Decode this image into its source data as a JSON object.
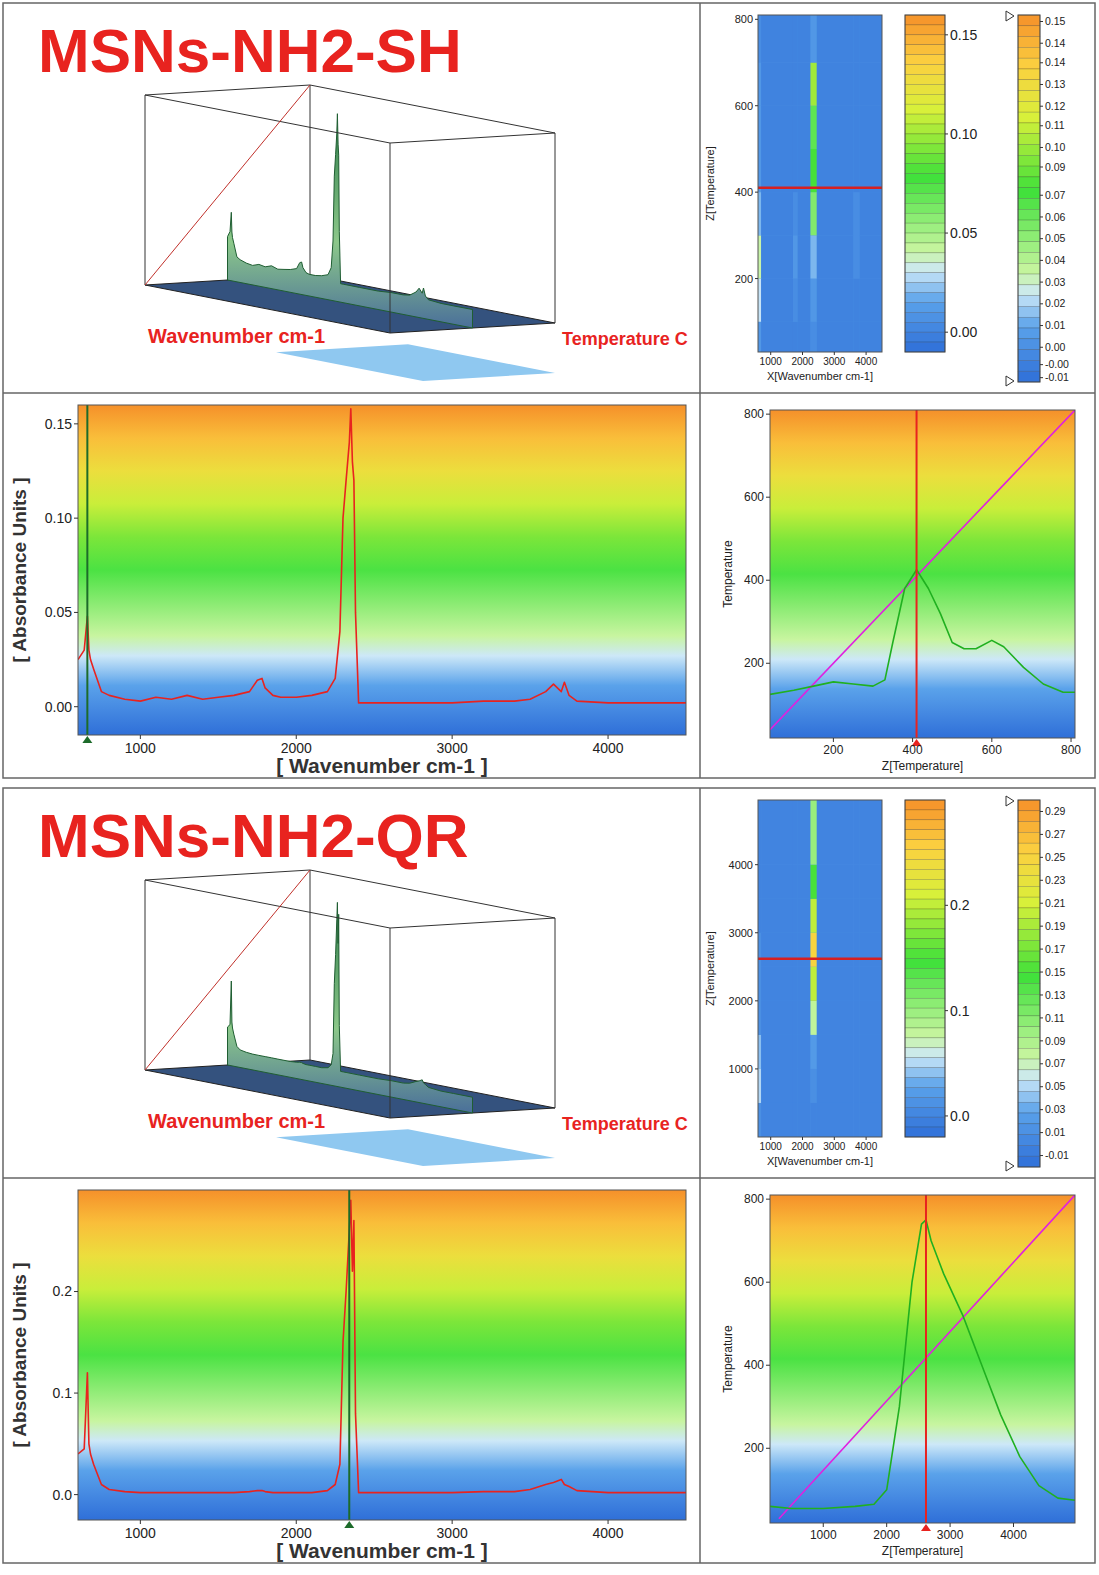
{
  "chart_data": [
    {
      "type": "surface3d",
      "title": "MSNs-NH2-SH",
      "x_label": "Wavenumber cm-1",
      "z_label": "Temperature C"
    },
    {
      "type": "heatmap",
      "x_label": "X[Wavenumber cm-1]",
      "y_label": "Z[Temperature]",
      "x_edges": [
        600,
        700,
        1700,
        1850,
        2250,
        2450,
        3600,
        3800,
        4500
      ],
      "y_edges": [
        30,
        100,
        200,
        300,
        400,
        500,
        600,
        700,
        810
      ],
      "cells": [
        [
          0.01,
          0,
          0,
          0,
          0.005,
          0,
          0,
          0
        ],
        [
          0.03,
          0,
          0.005,
          0,
          0.01,
          0,
          0,
          0
        ],
        [
          0.04,
          0,
          0.01,
          0,
          0.02,
          0,
          0.005,
          0
        ],
        [
          0.02,
          0,
          0.005,
          0,
          0.06,
          0,
          0.005,
          0
        ],
        [
          0.01,
          0,
          0,
          0,
          0.08,
          0,
          0,
          0
        ],
        [
          0.01,
          0,
          0,
          0,
          0.07,
          0,
          0,
          0
        ],
        [
          0.01,
          0,
          0,
          0,
          0.1,
          0,
          0,
          0
        ],
        [
          0.005,
          0,
          0,
          0,
          0.01,
          0,
          0,
          0
        ]
      ],
      "xlim": [
        600,
        4500
      ],
      "ylim": [
        30,
        810
      ],
      "xticks": [
        1000,
        2000,
        3000,
        4000
      ],
      "yticks": [
        200,
        400,
        600,
        800
      ],
      "cursor_y": 410,
      "colorbars": [
        {
          "range": [
            -0.01,
            0.16
          ],
          "ticks": [
            {
              "value": 0,
              "label": "0.00"
            },
            0.05,
            {
              "value": 0.1,
              "label": "0.10"
            },
            0.15
          ]
        },
        {
          "range": [
            -0.012,
            0.157
          ],
          "ticks": [
            {
              "value": 0.154,
              "label": "0.15"
            },
            {
              "value": 0.144,
              "label": "0.14"
            },
            {
              "value": 0.135,
              "label": "0.14"
            },
            {
              "value": 0.125,
              "label": "0.13"
            },
            {
              "value": 0.115,
              "label": "0.12"
            },
            {
              "value": 0.106,
              "label": "0.11"
            },
            {
              "value": 0.096,
              "label": "0.10"
            },
            {
              "value": 0.087,
              "label": "0.09"
            },
            {
              "value": 0.074,
              "label": "0.07"
            },
            {
              "value": 0.064,
              "label": "0.06"
            },
            {
              "value": 0.054,
              "label": "0.05"
            },
            {
              "value": 0.044,
              "label": "0.04"
            },
            {
              "value": 0.034,
              "label": "0.03"
            },
            {
              "value": 0.024,
              "label": "0.02"
            },
            {
              "value": 0.014,
              "label": "0.01"
            },
            {
              "value": 0.004,
              "label": "0.00"
            },
            {
              "value": -0.004,
              "label": "-0.00"
            },
            -0.01
          ]
        }
      ]
    },
    {
      "type": "line",
      "x_label": "[ Wavenumber cm-1 ]",
      "y_label": "[ Absorbance Units ]",
      "color": "#e8231f",
      "x": [
        600,
        640,
        660,
        670,
        680,
        700,
        750,
        800,
        900,
        1000,
        1100,
        1200,
        1300,
        1400,
        1500,
        1600,
        1700,
        1750,
        1780,
        1800,
        1850,
        1900,
        2000,
        2100,
        2200,
        2250,
        2280,
        2300,
        2320,
        2340,
        2350,
        2360,
        2370,
        2380,
        2400,
        2450,
        2500,
        2700,
        3000,
        3200,
        3400,
        3500,
        3600,
        3650,
        3700,
        3720,
        3750,
        3800,
        4000,
        4200,
        4500
      ],
      "values": [
        0.025,
        0.03,
        0.048,
        0.03,
        0.025,
        0.02,
        0.008,
        0.006,
        0.004,
        0.003,
        0.005,
        0.004,
        0.006,
        0.004,
        0.005,
        0.006,
        0.008,
        0.014,
        0.015,
        0.01,
        0.006,
        0.005,
        0.005,
        0.006,
        0.008,
        0.015,
        0.04,
        0.1,
        0.12,
        0.14,
        0.158,
        0.13,
        0.12,
        0.05,
        0.002,
        0.002,
        0.002,
        0.002,
        0.002,
        0.003,
        0.003,
        0.004,
        0.008,
        0.012,
        0.008,
        0.013,
        0.006,
        0.003,
        0.002,
        0.002,
        0.002
      ],
      "xlim": [
        600,
        4500
      ],
      "ylim": [
        -0.015,
        0.16
      ],
      "xticks": [
        1000,
        2000,
        3000,
        4000
      ],
      "yticks": [
        {
          "value": 0,
          "label": "0.00"
        },
        0.05,
        {
          "value": 0.1,
          "label": "0.10"
        },
        0.15
      ],
      "cursor_x": 660
    },
    {
      "type": "line",
      "x_label": "Z[Temperature]",
      "y_label": "Temperature",
      "series": [
        {
          "color": "#e020e0",
          "x": [
            40,
            810
          ],
          "values": [
            40,
            810
          ]
        },
        {
          "color": "#20b020",
          "x": [
            40,
            100,
            150,
            200,
            250,
            300,
            330,
            350,
            380,
            410,
            440,
            470,
            500,
            530,
            560,
            600,
            630,
            680,
            730,
            780,
            810
          ],
          "values": [
            125,
            135,
            145,
            155,
            150,
            145,
            160,
            250,
            380,
            425,
            380,
            320,
            250,
            235,
            235,
            255,
            240,
            190,
            150,
            130,
            130
          ]
        }
      ],
      "xlim": [
        40,
        810
      ],
      "ylim": [
        20,
        810
      ],
      "xticks": [
        200,
        400,
        600,
        800
      ],
      "yticks": [
        200,
        400,
        600,
        800
      ],
      "cursor_x": 410
    },
    {
      "type": "surface3d",
      "title": "MSNs-NH2-QR",
      "x_label": "Wavenumber cm-1",
      "z_label": "Temperature C"
    },
    {
      "type": "heatmap",
      "x_label": "X[Wavenumber cm-1]",
      "y_label": "Z[Temperature]",
      "x_edges": [
        600,
        700,
        1700,
        1850,
        2250,
        2450,
        3600,
        3800,
        4500
      ],
      "y_edges": [
        0,
        500,
        1000,
        1500,
        2000,
        2500,
        3000,
        3500,
        4000,
        4950
      ],
      "cells": [
        [
          0.01,
          0,
          0,
          0,
          0,
          0,
          0,
          0
        ],
        [
          0.05,
          0,
          0,
          0,
          0.01,
          0,
          0,
          0
        ],
        [
          0.04,
          0,
          0,
          0,
          0.02,
          0,
          0,
          0
        ],
        [
          0.01,
          0,
          0,
          0,
          0.08,
          0,
          0,
          0
        ],
        [
          0.01,
          0,
          0,
          0,
          0.2,
          0,
          0,
          0
        ],
        [
          0.01,
          0,
          0,
          0,
          0.25,
          0,
          0,
          0
        ],
        [
          0,
          0,
          0,
          0,
          0.2,
          0,
          0,
          0
        ],
        [
          0,
          0,
          0,
          0,
          0.15,
          0,
          0,
          0
        ],
        [
          0,
          0,
          0,
          0,
          0.1,
          0,
          0,
          0
        ]
      ],
      "xlim": [
        600,
        4500
      ],
      "ylim": [
        0,
        4950
      ],
      "xticks": [
        1000,
        2000,
        3000,
        4000
      ],
      "yticks": [
        1000,
        2000,
        3000,
        4000
      ],
      "cursor_y": 2620,
      "colorbars": [
        {
          "range": [
            -0.02,
            0.3
          ],
          "ticks": [
            {
              "value": 0,
              "label": "0.0"
            },
            0.1,
            0.2
          ]
        },
        {
          "range": [
            -0.02,
            0.3
          ],
          "ticks": [
            0.29,
            0.27,
            0.25,
            0.23,
            0.21,
            0.19,
            0.17,
            0.15,
            0.13,
            0.11,
            0.09,
            0.07,
            0.05,
            0.03,
            0.01,
            -0.01
          ]
        }
      ]
    },
    {
      "type": "line",
      "x_label": "[ Wavenumber cm-1 ]",
      "y_label": "[ Absorbance Units ]",
      "color": "#e8231f",
      "x": [
        600,
        640,
        660,
        670,
        680,
        700,
        750,
        800,
        900,
        1000,
        1100,
        1200,
        1300,
        1400,
        1500,
        1600,
        1700,
        1750,
        1780,
        1800,
        1850,
        1900,
        2000,
        2100,
        2200,
        2250,
        2280,
        2300,
        2320,
        2340,
        2350,
        2360,
        2370,
        2380,
        2400,
        2450,
        2500,
        2700,
        3000,
        3200,
        3400,
        3500,
        3600,
        3650,
        3700,
        3720,
        3750,
        3800,
        4000,
        4200,
        4500
      ],
      "values": [
        0.04,
        0.045,
        0.12,
        0.05,
        0.04,
        0.03,
        0.01,
        0.005,
        0.003,
        0.002,
        0.002,
        0.002,
        0.002,
        0.002,
        0.002,
        0.002,
        0.003,
        0.004,
        0.004,
        0.003,
        0.002,
        0.002,
        0.002,
        0.002,
        0.004,
        0.01,
        0.03,
        0.15,
        0.2,
        0.26,
        0.29,
        0.22,
        0.27,
        0.08,
        0.002,
        0.002,
        0.002,
        0.002,
        0.002,
        0.003,
        0.003,
        0.005,
        0.01,
        0.012,
        0.015,
        0.01,
        0.008,
        0.004,
        0.002,
        0.002,
        0.002
      ],
      "xlim": [
        600,
        4500
      ],
      "ylim": [
        -0.025,
        0.3
      ],
      "xticks": [
        1000,
        2000,
        3000,
        4000
      ],
      "yticks": [
        {
          "value": 0,
          "label": "0.0"
        },
        0.1,
        0.2
      ],
      "cursor_x": 2340
    },
    {
      "type": "line",
      "x_label": "Z[Temperature]",
      "y_label": "Temperature",
      "series": [
        {
          "color": "#e020e0",
          "x": [
            300,
            4970
          ],
          "values": [
            30,
            810
          ]
        },
        {
          "color": "#20b020",
          "x": [
            160,
            500,
            1000,
            1500,
            1800,
            2000,
            2200,
            2400,
            2550,
            2620,
            2700,
            2900,
            3200,
            3500,
            3800,
            4100,
            4400,
            4700,
            4970
          ],
          "values": [
            60,
            55,
            55,
            60,
            65,
            100,
            300,
            600,
            740,
            750,
            700,
            620,
            520,
            400,
            280,
            180,
            110,
            80,
            75
          ]
        }
      ],
      "xlim": [
        160,
        4970
      ],
      "ylim": [
        20,
        810
      ],
      "xticks": [
        1000,
        2000,
        3000,
        4000
      ],
      "yticks": [
        200,
        400,
        600,
        800
      ],
      "cursor_x": 2620
    }
  ]
}
